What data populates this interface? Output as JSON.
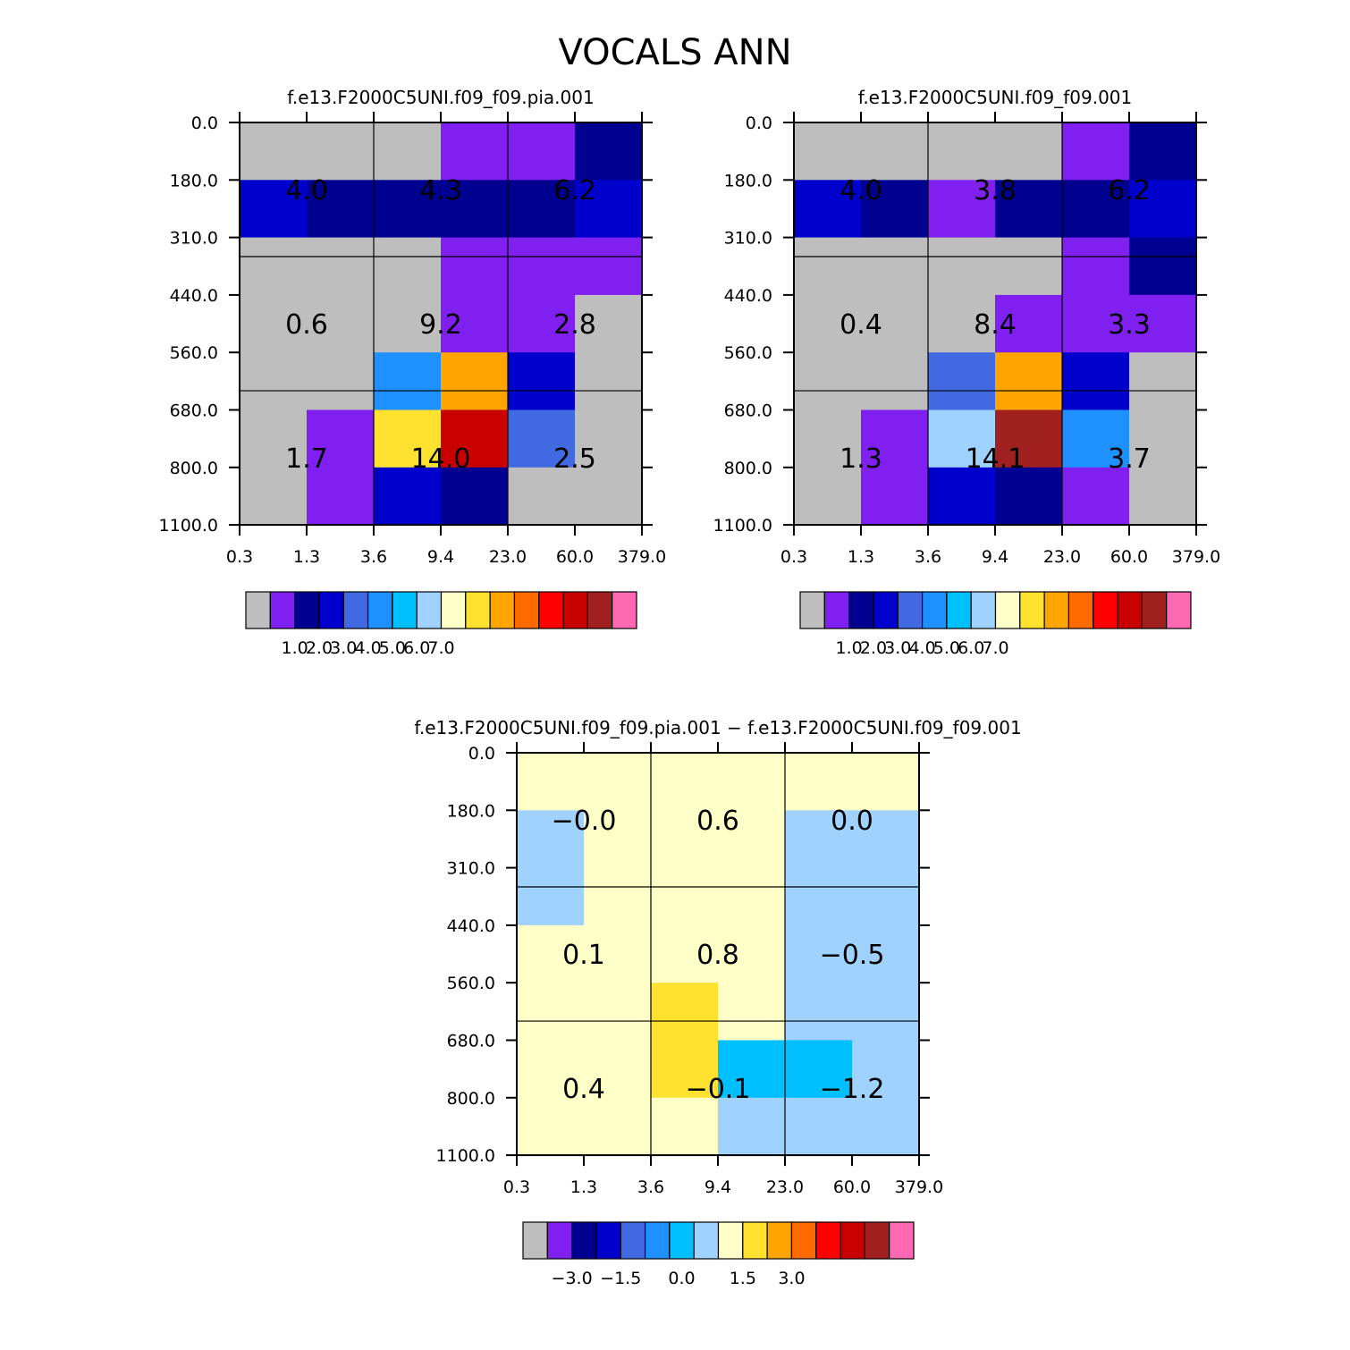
{
  "page_title": "VOCALS ANN",
  "colors": {
    "palette_a": [
      "#bebebe",
      "#8020f0",
      "#000090",
      "#0000cd",
      "#4169e1",
      "#1e90ff",
      "#00bfff",
      "#a0d2ff",
      "#ffffc8",
      "#ffe130",
      "#ffa500",
      "#ff6a00",
      "#ff0000",
      "#c80000",
      "#a02020",
      "#ff69b4"
    ],
    "palette_diff": [
      "#bebebe",
      "#8020f0",
      "#000090",
      "#0000cd",
      "#4169e1",
      "#1e90ff",
      "#00bfff",
      "#a0d2ff",
      "#ffffc8",
      "#ffe130",
      "#ffa500",
      "#ff6a00",
      "#ff0000",
      "#c80000",
      "#a02020",
      "#ff69b4"
    ]
  },
  "chart_data": [
    {
      "type": "heatmap",
      "title": "f.e13.F2000C5UNI.f09_f09.pia.001",
      "x_tick_labels": [
        "0.3",
        "1.3",
        "3.6",
        "9.4",
        "23.0",
        "60.0",
        "379.0"
      ],
      "y_tick_labels": [
        "0.0",
        "180.0",
        "310.0",
        "440.0",
        "560.0",
        "680.0",
        "800.0",
        "1100.0"
      ],
      "cell_color_index": [
        [
          0,
          0,
          0,
          1,
          1,
          2
        ],
        [
          3,
          2,
          2,
          2,
          2,
          3
        ],
        [
          0,
          0,
          0,
          1,
          1,
          1
        ],
        [
          0,
          0,
          0,
          1,
          1,
          0
        ],
        [
          0,
          0,
          5,
          10,
          3,
          0
        ],
        [
          0,
          1,
          9,
          13,
          4,
          0
        ],
        [
          0,
          1,
          3,
          2,
          0,
          0
        ]
      ],
      "group_labels": [
        [
          "4.0",
          "4.3",
          "6.2"
        ],
        [
          "0.6",
          "9.2",
          "2.8"
        ],
        [
          "1.7",
          "14.0",
          "2.5"
        ]
      ],
      "colorbar_labels": [
        "1.0",
        "2.0",
        "3.0",
        "4.0",
        "5.0",
        "6.0",
        "7.0"
      ]
    },
    {
      "type": "heatmap",
      "title": "f.e13.F2000C5UNI.f09_f09.001",
      "x_tick_labels": [
        "0.3",
        "1.3",
        "3.6",
        "9.4",
        "23.0",
        "60.0",
        "379.0"
      ],
      "y_tick_labels": [
        "0.0",
        "180.0",
        "310.0",
        "440.0",
        "560.0",
        "680.0",
        "800.0",
        "1100.0"
      ],
      "cell_color_index": [
        [
          0,
          0,
          0,
          0,
          1,
          2
        ],
        [
          3,
          2,
          1,
          2,
          2,
          3
        ],
        [
          0,
          0,
          0,
          0,
          1,
          2
        ],
        [
          0,
          0,
          0,
          1,
          1,
          1
        ],
        [
          0,
          0,
          4,
          10,
          3,
          0
        ],
        [
          0,
          1,
          7,
          14,
          5,
          0
        ],
        [
          0,
          1,
          3,
          2,
          1,
          0
        ]
      ],
      "group_labels": [
        [
          "4.0",
          "3.8",
          "6.2"
        ],
        [
          "0.4",
          "8.4",
          "3.3"
        ],
        [
          "1.3",
          "14.1",
          "3.7"
        ]
      ],
      "colorbar_labels": [
        "1.0",
        "2.0",
        "3.0",
        "4.0",
        "5.0",
        "6.0",
        "7.0"
      ]
    },
    {
      "type": "heatmap",
      "title": "f.e13.F2000C5UNI.f09_f09.pia.001 − f.e13.F2000C5UNI.f09_f09.001",
      "x_tick_labels": [
        "0.3",
        "1.3",
        "3.6",
        "9.4",
        "23.0",
        "60.0",
        "379.0"
      ],
      "y_tick_labels": [
        "0.0",
        "180.0",
        "310.0",
        "440.0",
        "560.0",
        "680.0",
        "800.0",
        "1100.0"
      ],
      "cell_color_index": [
        [
          8,
          8,
          8,
          8,
          8,
          8
        ],
        [
          7,
          8,
          8,
          8,
          7,
          7
        ],
        [
          7,
          8,
          8,
          8,
          7,
          7
        ],
        [
          8,
          8,
          8,
          8,
          7,
          7
        ],
        [
          8,
          8,
          9,
          8,
          7,
          7
        ],
        [
          8,
          8,
          9,
          6,
          6,
          7
        ],
        [
          8,
          8,
          8,
          7,
          7,
          7
        ]
      ],
      "group_labels": [
        [
          "−0.0",
          "0.6",
          "0.0"
        ],
        [
          "0.1",
          "0.8",
          "−0.5"
        ],
        [
          "0.4",
          "−0.1",
          "−1.2"
        ]
      ],
      "colorbar_labels": [
        "−3.0",
        "−1.5",
        "0.0",
        "1.5",
        "3.0"
      ]
    }
  ]
}
